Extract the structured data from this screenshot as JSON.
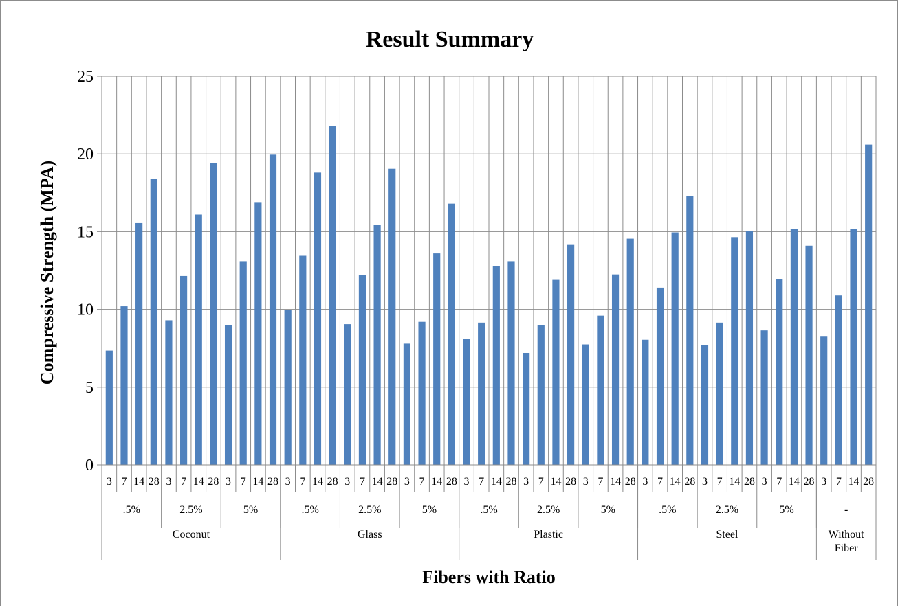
{
  "chart_data": {
    "type": "bar",
    "title": "Result Summary",
    "xlabel": "Fibers with Ratio",
    "ylabel": "Compressive Strength (MPA)",
    "ylim": [
      0,
      25
    ],
    "yticks": [
      0,
      5,
      10,
      15,
      20,
      25
    ],
    "grid": true,
    "legend": "none",
    "bar_color": "#4f81bd",
    "groups": [
      {
        "fiber": "Coconut",
        "subgroups": [
          {
            "ratio": ".5%",
            "ages": [
              "3",
              "7",
              "14",
              "28"
            ],
            "values": [
              7.35,
              10.2,
              15.55,
              18.4
            ]
          },
          {
            "ratio": "2.5%",
            "ages": [
              "3",
              "7",
              "14",
              "28"
            ],
            "values": [
              9.3,
              12.15,
              16.1,
              19.4
            ]
          },
          {
            "ratio": "5%",
            "ages": [
              "3",
              "7",
              "14",
              "28"
            ],
            "values": [
              9.0,
              13.1,
              16.9,
              19.95
            ]
          }
        ]
      },
      {
        "fiber": "Glass",
        "subgroups": [
          {
            "ratio": ".5%",
            "ages": [
              "3",
              "7",
              "14",
              "28"
            ],
            "values": [
              9.95,
              13.45,
              18.8,
              21.8
            ]
          },
          {
            "ratio": "2.5%",
            "ages": [
              "3",
              "7",
              "14",
              "28"
            ],
            "values": [
              9.05,
              12.2,
              15.45,
              19.05
            ]
          },
          {
            "ratio": "5%",
            "ages": [
              "3",
              "7",
              "14",
              "28"
            ],
            "values": [
              7.8,
              9.2,
              13.6,
              16.8
            ]
          }
        ]
      },
      {
        "fiber": "Plastic",
        "subgroups": [
          {
            "ratio": ".5%",
            "ages": [
              "3",
              "7",
              "14",
              "28"
            ],
            "values": [
              8.1,
              9.15,
              12.8,
              13.1
            ]
          },
          {
            "ratio": "2.5%",
            "ages": [
              "3",
              "7",
              "14",
              "28"
            ],
            "values": [
              7.2,
              9.0,
              11.9,
              14.15
            ]
          },
          {
            "ratio": "5%",
            "ages": [
              "3",
              "7",
              "14",
              "28"
            ],
            "values": [
              7.75,
              9.6,
              12.25,
              14.55
            ]
          }
        ]
      },
      {
        "fiber": "Steel",
        "subgroups": [
          {
            "ratio": ".5%",
            "ages": [
              "3",
              "7",
              "14",
              "28"
            ],
            "values": [
              8.05,
              11.4,
              14.95,
              17.3
            ]
          },
          {
            "ratio": "2.5%",
            "ages": [
              "3",
              "7",
              "14",
              "28"
            ],
            "values": [
              7.7,
              9.15,
              14.65,
              15.05
            ]
          },
          {
            "ratio": "5%",
            "ages": [
              "3",
              "7",
              "14",
              "28"
            ],
            "values": [
              8.65,
              11.95,
              15.15,
              14.1
            ]
          }
        ]
      },
      {
        "fiber": "Without Fiber",
        "subgroups": [
          {
            "ratio": "-",
            "ages": [
              "3",
              "7",
              "14",
              "28"
            ],
            "values": [
              8.25,
              10.9,
              15.15,
              20.6
            ]
          }
        ]
      }
    ]
  }
}
